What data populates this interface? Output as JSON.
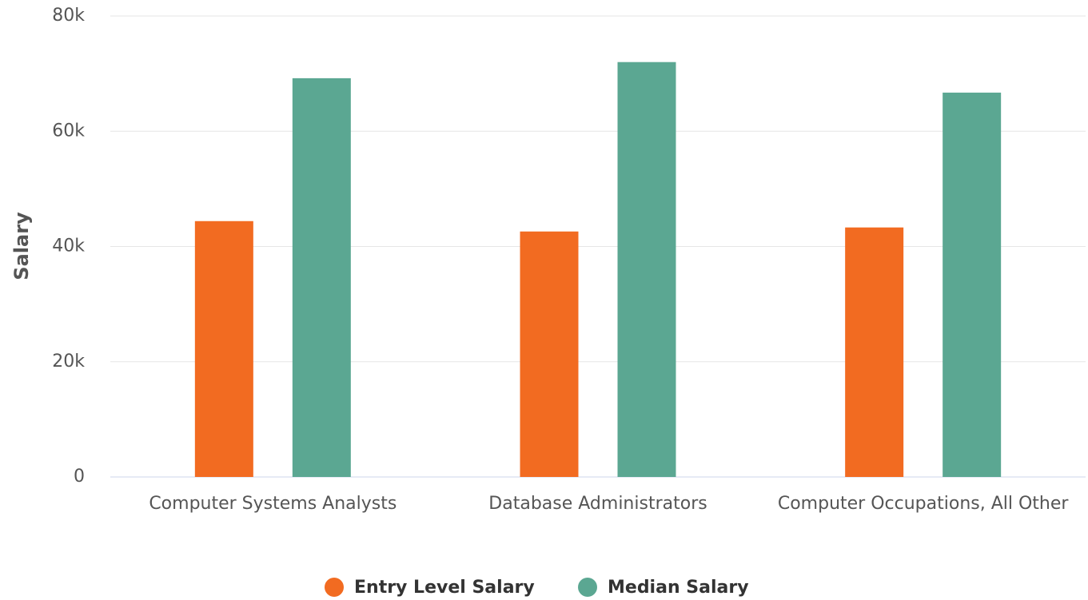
{
  "chart_data": {
    "type": "bar",
    "y_axis_label": "Salary",
    "categories": [
      "Computer Systems Analysts",
      "Database Administrators",
      "Computer Occupations, All Other"
    ],
    "series": [
      {
        "name": "Entry Level Salary",
        "color": "#f26b21",
        "values": [
          44400,
          42600,
          43300
        ]
      },
      {
        "name": "Median Salary",
        "color": "#5ba792",
        "values": [
          69200,
          72000,
          66700
        ]
      }
    ],
    "ylim": [
      0,
      80000
    ],
    "yticks": [
      0,
      {
        "value": 20000,
        "label": "20k"
      },
      {
        "value": 40000,
        "label": "40k"
      },
      {
        "value": 60000,
        "label": "60k"
      },
      {
        "value": 80000,
        "label": "80k"
      }
    ],
    "grid": true,
    "legend": "bottom"
  }
}
